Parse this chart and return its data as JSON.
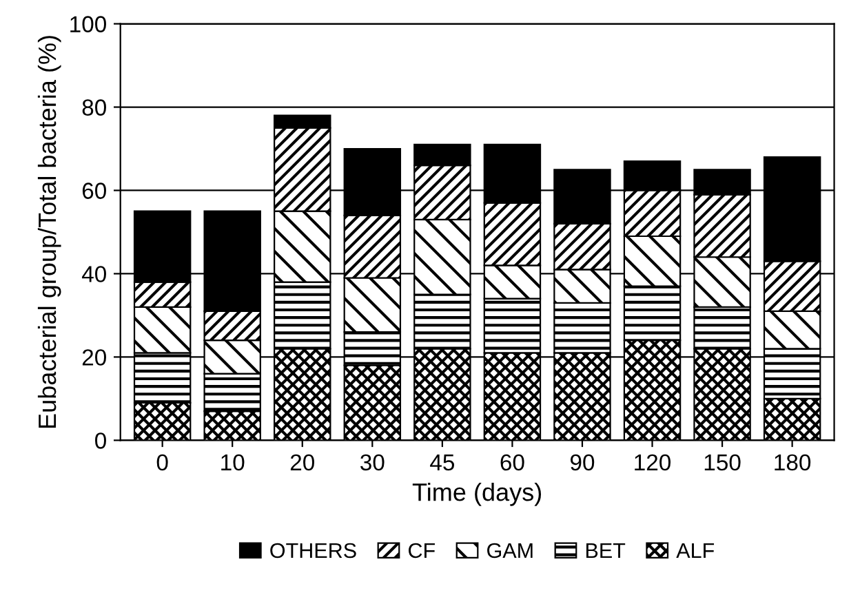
{
  "chart_data": {
    "type": "bar",
    "stacked": true,
    "xlabel": "Time (days)",
    "ylabel": "Eubacterial group/Total bacteria (%)",
    "categories": [
      "0",
      "10",
      "20",
      "30",
      "45",
      "60",
      "90",
      "120",
      "150",
      "180"
    ],
    "series": [
      {
        "name": "ALF",
        "color": "#000000",
        "values": [
          9,
          7,
          22,
          18,
          22,
          21,
          21,
          24,
          22,
          10
        ]
      },
      {
        "name": "BET",
        "color": "#000000",
        "values": [
          12,
          9,
          16,
          8,
          13,
          13,
          12,
          13,
          10,
          12
        ]
      },
      {
        "name": "GAM",
        "color": "#000000",
        "values": [
          11,
          8,
          17,
          13,
          18,
          8,
          8,
          12,
          12,
          9
        ]
      },
      {
        "name": "CF",
        "color": "#000000",
        "values": [
          6,
          7,
          20,
          15,
          13,
          15,
          11,
          11,
          15,
          12
        ]
      },
      {
        "name": "OTHERS",
        "color": "#000000",
        "values": [
          17,
          24,
          3,
          16,
          5,
          14,
          13,
          7,
          6,
          25
        ]
      }
    ],
    "ylim": [
      0,
      100
    ],
    "yticks": [
      0,
      20,
      40,
      60,
      80,
      100
    ],
    "grid": "y",
    "legend": "bottom"
  }
}
